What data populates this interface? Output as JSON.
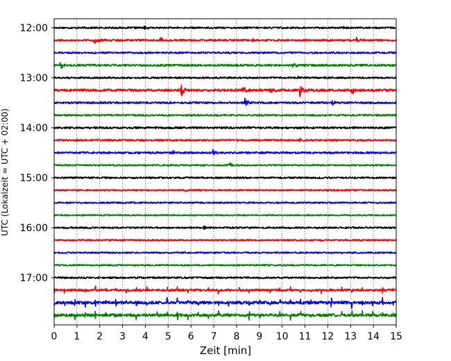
{
  "chart_data": {
    "type": "line",
    "title": "",
    "xlabel": "Zeit  [min]",
    "ylabel": "UTC (Lokalzeit = UTC + 02:00)",
    "xlim": [
      0,
      15
    ],
    "x_ticks": [
      "0",
      "1",
      "2",
      "3",
      "4",
      "5",
      "6",
      "7",
      "8",
      "9",
      "10",
      "11",
      "12",
      "13",
      "14",
      "15"
    ],
    "y_ticks": [
      "12:00",
      "13:00",
      "14:00",
      "15:00",
      "16:00",
      "17:00"
    ],
    "grid": "vertical dotted",
    "colors": [
      "#000000",
      "#ff0000",
      "#0000ff",
      "#008000"
    ],
    "series": [
      {
        "start": "12:00",
        "color": "#000000",
        "level": 0.12,
        "events": [
          {
            "t": 4.0,
            "a": 0.25
          },
          {
            "t": 12.7,
            "a": 0.18
          }
        ]
      },
      {
        "start": "12:15",
        "color": "#ff0000",
        "level": 0.14,
        "events": [
          {
            "t": 1.8,
            "a": 0.55
          },
          {
            "t": 4.7,
            "a": 0.3
          },
          {
            "t": 8.7,
            "a": 0.3
          },
          {
            "t": 13.3,
            "a": 0.45
          }
        ]
      },
      {
        "start": "12:30",
        "color": "#0000ff",
        "level": 0.12,
        "events": [
          {
            "t": 8.6,
            "a": 0.15
          }
        ]
      },
      {
        "start": "12:45",
        "color": "#008000",
        "level": 0.15,
        "events": [
          {
            "t": 0.3,
            "a": 0.4
          },
          {
            "t": 10.5,
            "a": 0.3
          }
        ]
      },
      {
        "start": "13:00",
        "color": "#000000",
        "level": 0.12,
        "events": [
          {
            "t": 10.7,
            "a": 0.28
          }
        ]
      },
      {
        "start": "13:15",
        "color": "#ff0000",
        "level": 0.18,
        "events": [
          {
            "t": 5.6,
            "a": 0.85
          },
          {
            "t": 8.3,
            "a": 0.7
          },
          {
            "t": 9.5,
            "a": 0.4
          },
          {
            "t": 10.8,
            "a": 0.85
          },
          {
            "t": 13.1,
            "a": 0.6
          }
        ]
      },
      {
        "start": "13:30",
        "color": "#0000ff",
        "level": 0.14,
        "events": [
          {
            "t": 8.4,
            "a": 0.6
          },
          {
            "t": 12.2,
            "a": 0.4
          }
        ]
      },
      {
        "start": "13:45",
        "color": "#008000",
        "level": 0.12,
        "events": [
          {
            "t": 10.7,
            "a": 0.15
          }
        ]
      },
      {
        "start": "14:00",
        "color": "#000000",
        "level": 0.14,
        "events": [
          {
            "t": 1.6,
            "a": 0.2
          }
        ]
      },
      {
        "start": "14:15",
        "color": "#ff0000",
        "level": 0.13,
        "events": [
          {
            "t": 10.8,
            "a": 0.22
          }
        ]
      },
      {
        "start": "14:30",
        "color": "#0000ff",
        "level": 0.14,
        "events": [
          {
            "t": 5.2,
            "a": 0.3
          },
          {
            "t": 7.0,
            "a": 0.45
          }
        ]
      },
      {
        "start": "14:45",
        "color": "#008000",
        "level": 0.11,
        "events": [
          {
            "t": 7.7,
            "a": 0.35
          }
        ]
      },
      {
        "start": "15:00",
        "color": "#000000",
        "level": 0.12,
        "events": []
      },
      {
        "start": "15:15",
        "color": "#ff0000",
        "level": 0.11,
        "events": [
          {
            "t": 5.8,
            "a": 0.25
          }
        ]
      },
      {
        "start": "15:30",
        "color": "#0000ff",
        "level": 0.11,
        "events": []
      },
      {
        "start": "15:45",
        "color": "#008000",
        "level": 0.1,
        "events": []
      },
      {
        "start": "16:00",
        "color": "#000000",
        "level": 0.12,
        "events": [
          {
            "t": 6.6,
            "a": 0.2
          }
        ]
      },
      {
        "start": "16:15",
        "color": "#ff0000",
        "level": 0.12,
        "events": []
      },
      {
        "start": "16:30",
        "color": "#0000ff",
        "level": 0.11,
        "events": []
      },
      {
        "start": "16:45",
        "color": "#008000",
        "level": 0.11,
        "events": []
      },
      {
        "start": "17:00",
        "color": "#000000",
        "level": 0.12,
        "events": []
      },
      {
        "start": "17:15",
        "color": "#ff0000",
        "level": 0.16,
        "period": 0.45,
        "spike": 0.55
      },
      {
        "start": "17:30",
        "color": "#0000ff",
        "level": 0.2,
        "period": 0.45,
        "spike": 0.65
      },
      {
        "start": "17:45",
        "color": "#008000",
        "level": 0.2,
        "period": 0.45,
        "spike": 0.7
      }
    ]
  }
}
